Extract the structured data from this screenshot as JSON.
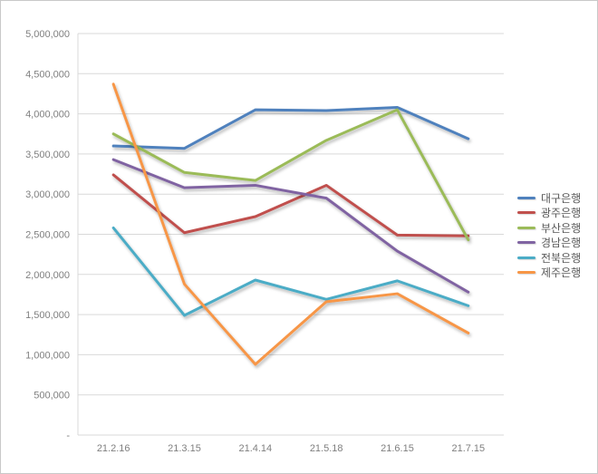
{
  "chart_data": {
    "type": "line",
    "title": "",
    "xlabel": "",
    "ylabel": "",
    "categories": [
      "21.2.16",
      "21.3.15",
      "21.4.14",
      "21.5.18",
      "21.6.15",
      "21.7.15"
    ],
    "series": [
      {
        "id": "daegu-bank",
        "name": "대구은행",
        "color": "#4F81BD",
        "values": [
          3600000,
          3570000,
          4050000,
          4040000,
          4080000,
          3690000
        ]
      },
      {
        "id": "gwangju-bank",
        "name": "광주은행",
        "color": "#C0504D",
        "values": [
          3240000,
          2520000,
          2720000,
          3110000,
          2490000,
          2480000
        ]
      },
      {
        "id": "busan-bank",
        "name": "부산은행",
        "color": "#9BBB59",
        "values": [
          3750000,
          3270000,
          3170000,
          3670000,
          4050000,
          2430000
        ]
      },
      {
        "id": "gyeongnam-bank",
        "name": "경남은행",
        "color": "#8064A2",
        "values": [
          3430000,
          3080000,
          3110000,
          2950000,
          2290000,
          1780000
        ]
      },
      {
        "id": "jeonbuk-bank",
        "name": "전북은행",
        "color": "#4BACC6",
        "values": [
          2580000,
          1490000,
          1930000,
          1690000,
          1920000,
          1610000
        ]
      },
      {
        "id": "jeju-bank",
        "name": "제주은행",
        "color": "#F79646",
        "values": [
          4370000,
          1880000,
          880000,
          1660000,
          1760000,
          1270000
        ]
      }
    ],
    "ylim": [
      0,
      5000000
    ],
    "ytick_step": 500000,
    "zero_tick_label": "-",
    "grid": true,
    "legend_position": "right",
    "colors": {
      "gridline": "#d9d9d9",
      "axis_line": "#d9d9d9",
      "tick_label": "#7f7f7f",
      "legend_text": "#595959",
      "background": "#ffffff",
      "border": "#c9c9c9"
    }
  }
}
